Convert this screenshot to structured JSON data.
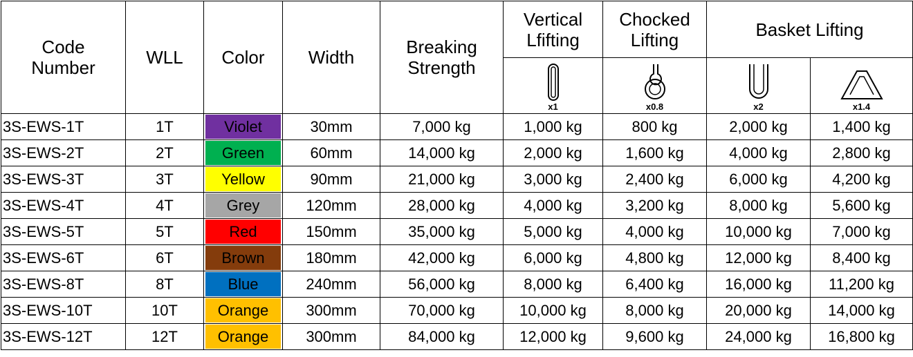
{
  "header": {
    "code": "Code Number",
    "wll": "WLL",
    "color": "Color",
    "width": "Width",
    "breaking": "Breaking Strength",
    "vertical": "Vertical Lfifting",
    "chocked": "Chocked Lifting",
    "basket": "Basket Lifting",
    "multipliers": [
      "x1",
      "x0.8",
      "x2",
      "x1.4"
    ]
  },
  "table": {
    "rows": [
      [
        "3S-EWS-1T",
        "1T",
        "Violet",
        "30mm",
        "7,000 kg",
        "1,000 kg",
        "800 kg",
        "2,000 kg",
        "1,400 kg"
      ],
      [
        "3S-EWS-2T",
        "2T",
        "Green",
        "60mm",
        "14,000 kg",
        "2,000 kg",
        "1,600 kg",
        "4,000 kg",
        "2,800 kg"
      ],
      [
        "3S-EWS-3T",
        "3T",
        "Yellow",
        "90mm",
        "21,000 kg",
        "3,000 kg",
        "2,400 kg",
        "6,000 kg",
        "4,200 kg"
      ],
      [
        "3S-EWS-4T",
        "4T",
        "Grey",
        "120mm",
        "28,000 kg",
        "4,000 kg",
        "3,200 kg",
        "8,000 kg",
        "5,600 kg"
      ],
      [
        "3S-EWS-5T",
        "5T",
        "Red",
        "150mm",
        "35,000 kg",
        "5,000 kg",
        "4,000 kg",
        "10,000 kg",
        "7,000 kg"
      ],
      [
        "3S-EWS-6T",
        "6T",
        "Brown",
        "180mm",
        "42,000 kg",
        "6,000 kg",
        "4,800 kg",
        "12,000 kg",
        "8,400 kg"
      ],
      [
        "3S-EWS-8T",
        "8T",
        "Blue",
        "240mm",
        "56,000 kg",
        "8,000 kg",
        "6,400 kg",
        "16,000 kg",
        "11,200 kg"
      ],
      [
        "3S-EWS-10T",
        "10T",
        "Orange",
        "300mm",
        "70,000 kg",
        "10,000 kg",
        "8,000 kg",
        "20,000 kg",
        "14,000 kg"
      ],
      [
        "3S-EWS-12T",
        "12T",
        "Orange",
        "300mm",
        "84,000 kg",
        "12,000 kg",
        "9,600 kg",
        "24,000 kg",
        "16,800 kg"
      ]
    ],
    "swatches": [
      "#7030a0",
      "#00b050",
      "#ffff00",
      "#a6a6a6",
      "#ff0000",
      "#843c0c",
      "#0070c0",
      "#ffc000",
      "#ffc000"
    ]
  }
}
